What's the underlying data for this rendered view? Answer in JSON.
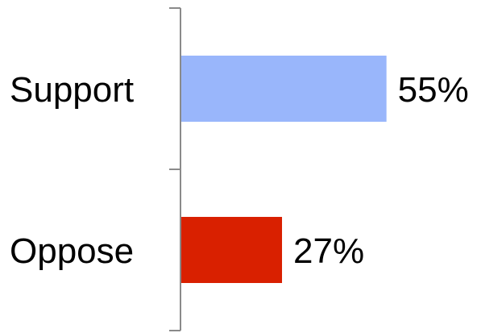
{
  "chart_data": {
    "type": "bar",
    "orientation": "horizontal",
    "categories": [
      "Support",
      "Oppose"
    ],
    "values": [
      55,
      27
    ],
    "value_labels": [
      "55%",
      "27%"
    ],
    "colors": [
      "#99b6fb",
      "#d92000"
    ],
    "xlim": [
      0,
      100
    ],
    "axis_color": "#8a8a8a",
    "grid": false,
    "legend": "none"
  }
}
